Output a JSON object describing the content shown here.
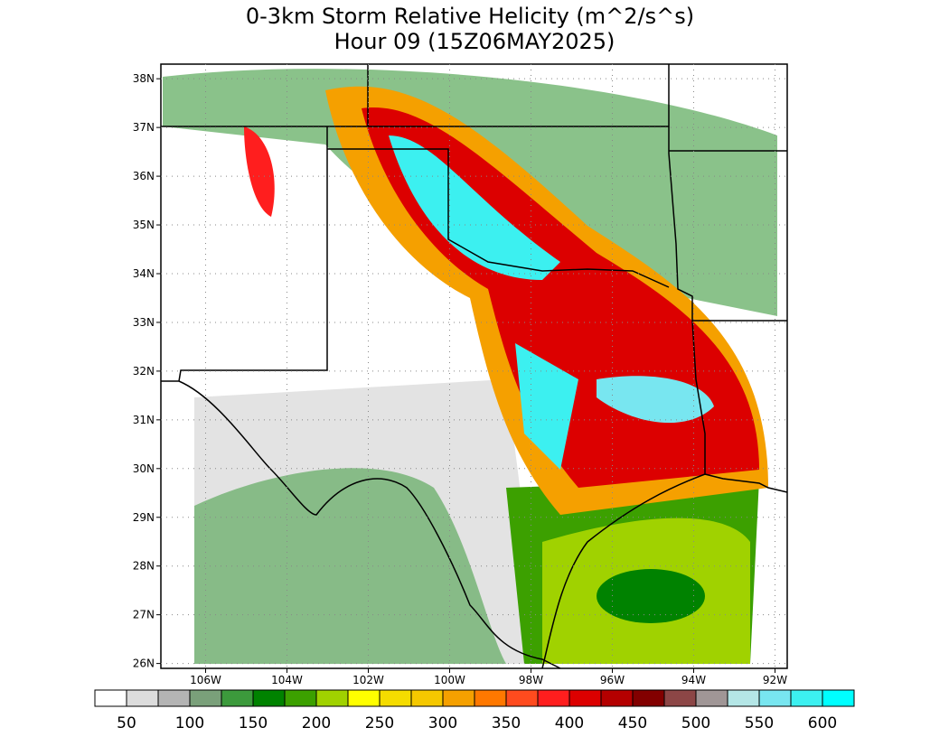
{
  "title": "0-3km Storm Relative Helicity (m^2/s^s)",
  "subtitle": "Hour 09 (15Z06MAY2025)",
  "map": {
    "xlim": [
      -107.1,
      -91.7
    ],
    "ylim": [
      25.9,
      38.3
    ],
    "xticks": [
      {
        "value": -106,
        "label": "106W"
      },
      {
        "value": -104,
        "label": "104W"
      },
      {
        "value": -102,
        "label": "102W"
      },
      {
        "value": -100,
        "label": "100W"
      },
      {
        "value": -98,
        "label": "98W"
      },
      {
        "value": -96,
        "label": "96W"
      },
      {
        "value": -94,
        "label": "94W"
      },
      {
        "value": -92,
        "label": "92W"
      }
    ],
    "yticks": [
      {
        "value": 26,
        "label": "26N"
      },
      {
        "value": 27,
        "label": "27N"
      },
      {
        "value": 28,
        "label": "28N"
      },
      {
        "value": 29,
        "label": "29N"
      },
      {
        "value": 30,
        "label": "30N"
      },
      {
        "value": 31,
        "label": "31N"
      },
      {
        "value": 32,
        "label": "32N"
      },
      {
        "value": 33,
        "label": "33N"
      },
      {
        "value": 34,
        "label": "34N"
      },
      {
        "value": 35,
        "label": "35N"
      },
      {
        "value": 36,
        "label": "36N"
      },
      {
        "value": 37,
        "label": "37N"
      },
      {
        "value": 38,
        "label": "38N"
      }
    ],
    "grid": true
  },
  "colorbar": {
    "colors": [
      "#ffffff",
      "#dcdcdc",
      "#b4b4b4",
      "#7aa07a",
      "#3c9a3c",
      "#008200",
      "#3ca000",
      "#a0d200",
      "#ffff00",
      "#f5dc00",
      "#f5c800",
      "#f5a000",
      "#ff7800",
      "#ff4b1e",
      "#ff1e1e",
      "#dc0000",
      "#b40000",
      "#820000",
      "#8c4646",
      "#a09696",
      "#b4e6e6",
      "#78e6f0",
      "#3cf0f0",
      "#00ffff"
    ],
    "levels": [
      50,
      100,
      150,
      200,
      250,
      300,
      350,
      400,
      450,
      500,
      550,
      600
    ]
  }
}
